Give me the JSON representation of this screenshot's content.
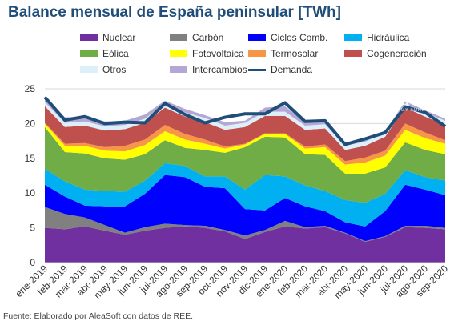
{
  "title": "Balance mensual de España peninsular [TWh]",
  "source_note": "Fuente: Elaborado por AleaSoft con datos de REE.",
  "watermark": {
    "brand": "AleaSoft",
    "tagline": "ENERGY FORECASTING"
  },
  "chart_data": {
    "type": "area",
    "stacked": true,
    "categories": [
      "ene-2019",
      "feb-2019",
      "mar-2019",
      "abr-2019",
      "may-2019",
      "jun-2019",
      "jul-2019",
      "ago-2019",
      "sep-2019",
      "oct-2019",
      "nov-2019",
      "dic-2019",
      "ene-2020",
      "feb-2020",
      "mar-2020",
      "abr-2020",
      "may-2020",
      "jun-2020",
      "jul-2020",
      "ago-2020",
      "sep-2020"
    ],
    "ylim": [
      0,
      25
    ],
    "yticks": [
      0,
      5,
      10,
      15,
      20,
      25
    ],
    "grid": true,
    "legend_position": "top",
    "series": [
      {
        "name": "Nuclear",
        "color": "#7030a0",
        "values": [
          5.0,
          4.8,
          5.2,
          4.6,
          4.0,
          4.6,
          5.0,
          5.2,
          5.0,
          4.5,
          3.4,
          4.4,
          5.2,
          4.9,
          5.1,
          4.2,
          3.0,
          3.7,
          5.1,
          5.0,
          4.8
        ]
      },
      {
        "name": "Carbón",
        "color": "#808080",
        "values": [
          3.0,
          2.2,
          1.3,
          0.8,
          0.3,
          0.5,
          0.6,
          0.2,
          0.3,
          0.2,
          0.5,
          0.3,
          0.8,
          0.2,
          0.2,
          0.1,
          0.1,
          0.1,
          0.2,
          0.3,
          0.2
        ]
      },
      {
        "name": "Ciclos Comb.",
        "color": "#0000ff",
        "values": [
          3.2,
          2.5,
          1.7,
          2.7,
          3.8,
          4.8,
          7.0,
          6.9,
          5.6,
          6.0,
          3.8,
          2.8,
          3.3,
          3.0,
          2.1,
          1.5,
          2.1,
          3.6,
          5.9,
          5.2,
          4.7
        ]
      },
      {
        "name": "Hidráulica",
        "color": "#00b0f0",
        "values": [
          2.3,
          2.2,
          2.3,
          2.2,
          2.1,
          1.9,
          1.7,
          1.6,
          1.5,
          1.7,
          2.8,
          5.1,
          3.1,
          3.0,
          2.9,
          3.2,
          3.4,
          2.5,
          2.1,
          1.8,
          2.1
        ]
      },
      {
        "name": "Eólica",
        "color": "#70ad47",
        "values": [
          6.0,
          4.2,
          5.2,
          4.7,
          4.6,
          3.8,
          3.3,
          2.6,
          3.8,
          3.4,
          6.1,
          5.5,
          5.6,
          4.5,
          5.2,
          3.8,
          4.2,
          3.8,
          4.0,
          3.9,
          3.8
        ]
      },
      {
        "name": "Fotovoltaica",
        "color": "#ffff00",
        "values": [
          0.5,
          0.9,
          1.1,
          1.1,
          1.2,
          1.3,
          1.3,
          1.2,
          0.9,
          0.6,
          0.4,
          0.4,
          0.5,
          0.8,
          1.1,
          1.3,
          1.6,
          1.7,
          1.8,
          1.7,
          1.5
        ]
      },
      {
        "name": "Termosolar",
        "color": "#f79646",
        "values": [
          0.1,
          0.3,
          0.4,
          0.5,
          0.8,
          0.8,
          0.9,
          0.8,
          0.6,
          0.3,
          0.1,
          0.1,
          0.1,
          0.3,
          0.4,
          0.5,
          0.7,
          0.7,
          0.9,
          0.8,
          0.5
        ]
      },
      {
        "name": "Cogeneración",
        "color": "#c0504d",
        "values": [
          2.4,
          2.4,
          2.5,
          2.4,
          2.4,
          2.4,
          2.5,
          2.5,
          2.5,
          2.4,
          2.4,
          2.5,
          2.5,
          2.4,
          2.3,
          1.6,
          1.7,
          2.0,
          2.3,
          2.3,
          2.2
        ]
      },
      {
        "name": "Otros",
        "color": "#ddf0fa",
        "values": [
          0.6,
          0.6,
          0.6,
          0.6,
          0.6,
          0.6,
          0.6,
          0.6,
          0.6,
          0.6,
          0.6,
          0.6,
          0.6,
          0.6,
          0.6,
          0.6,
          0.6,
          0.6,
          0.6,
          0.6,
          0.6
        ]
      },
      {
        "name": "Intercambios",
        "color": "#b4a7d6",
        "values": [
          0.8,
          0.8,
          0.7,
          0.7,
          0.6,
          0.6,
          0.4,
          0.5,
          0.4,
          0.5,
          0.3,
          0.6,
          0.8,
          0.5,
          0.4,
          0.2,
          0.3,
          0.2,
          0.3,
          0.3,
          0.3
        ]
      }
    ],
    "line_series": {
      "name": "Demanda",
      "color": "#1f4e79",
      "values": [
        23.8,
        20.5,
        21.0,
        20.0,
        20.2,
        20.1,
        22.9,
        21.3,
        20.1,
        20.9,
        21.4,
        21.4,
        23.0,
        20.3,
        20.4,
        17.0,
        17.8,
        18.7,
        22.4,
        21.6,
        19.6
      ]
    }
  }
}
